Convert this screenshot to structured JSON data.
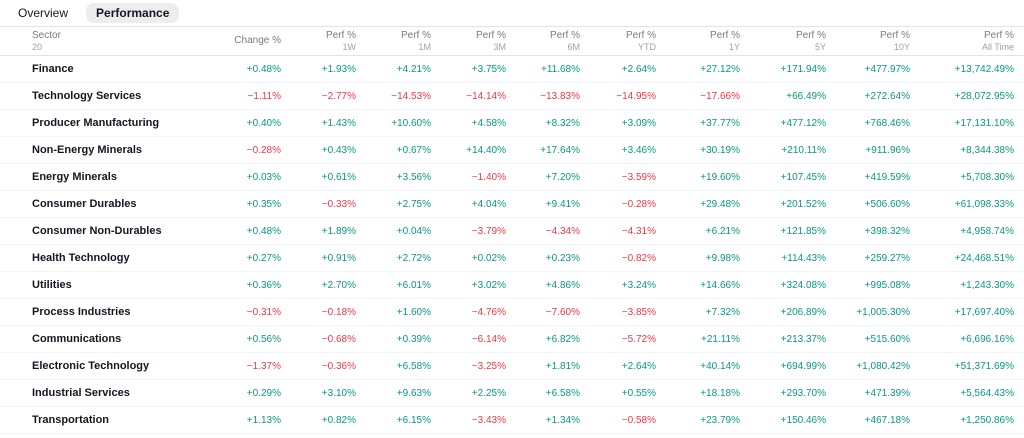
{
  "tabs": [
    {
      "label": "Overview",
      "active": false
    },
    {
      "label": "Performance",
      "active": true
    }
  ],
  "colors": {
    "positive": "#089981",
    "negative": "#f23645"
  },
  "table": {
    "sector_header": {
      "label": "Sector",
      "sub": "20"
    },
    "columns": [
      {
        "label": "Change %",
        "sub": ""
      },
      {
        "label": "Perf %",
        "sub": "1W"
      },
      {
        "label": "Perf %",
        "sub": "1M"
      },
      {
        "label": "Perf %",
        "sub": "3M"
      },
      {
        "label": "Perf %",
        "sub": "6M"
      },
      {
        "label": "Perf %",
        "sub": "YTD"
      },
      {
        "label": "Perf %",
        "sub": "1Y"
      },
      {
        "label": "Perf %",
        "sub": "5Y"
      },
      {
        "label": "Perf %",
        "sub": "10Y"
      },
      {
        "label": "Perf %",
        "sub": "All Time"
      }
    ],
    "rows": [
      {
        "sector": "Finance",
        "values": [
          "+0.48%",
          "+1.93%",
          "+4.21%",
          "+3.75%",
          "+11.68%",
          "+2.64%",
          "+27.12%",
          "+171.94%",
          "+477.97%",
          "+13,742.49%"
        ]
      },
      {
        "sector": "Technology Services",
        "values": [
          "−1.11%",
          "−2.77%",
          "−14.53%",
          "−14.14%",
          "−13.83%",
          "−14.95%",
          "−17.66%",
          "+66.49%",
          "+272.64%",
          "+28,072.95%"
        ]
      },
      {
        "sector": "Producer Manufacturing",
        "values": [
          "+0.40%",
          "+1.43%",
          "+10.60%",
          "+4.58%",
          "+8.32%",
          "+3.09%",
          "+37.77%",
          "+477.12%",
          "+768.46%",
          "+17,131.10%"
        ]
      },
      {
        "sector": "Non-Energy Minerals",
        "values": [
          "−0.28%",
          "+0.43%",
          "+0.67%",
          "+14.40%",
          "+17.64%",
          "+3.46%",
          "+30.19%",
          "+210.11%",
          "+911.96%",
          "+8,344.38%"
        ]
      },
      {
        "sector": "Energy Minerals",
        "values": [
          "+0.03%",
          "+0.61%",
          "+3.56%",
          "−1.40%",
          "+7.20%",
          "−3.59%",
          "+19.60%",
          "+107.45%",
          "+419.59%",
          "+5,708.30%"
        ]
      },
      {
        "sector": "Consumer Durables",
        "values": [
          "+0.35%",
          "−0.33%",
          "+2.75%",
          "+4.04%",
          "+9.41%",
          "−0.28%",
          "+29.48%",
          "+201.52%",
          "+506.60%",
          "+61,098.33%"
        ]
      },
      {
        "sector": "Consumer Non-Durables",
        "values": [
          "+0.48%",
          "+1.89%",
          "+0.04%",
          "−3.79%",
          "−4.34%",
          "−4.31%",
          "+6.21%",
          "+121.85%",
          "+398.32%",
          "+4,958.74%"
        ]
      },
      {
        "sector": "Health Technology",
        "values": [
          "+0.27%",
          "+0.91%",
          "+2.72%",
          "+0.02%",
          "+0.23%",
          "−0.82%",
          "+9.98%",
          "+114.43%",
          "+259.27%",
          "+24,468.51%"
        ]
      },
      {
        "sector": "Utilities",
        "values": [
          "+0.36%",
          "+2.70%",
          "+6.01%",
          "+3.02%",
          "+4.86%",
          "+3.24%",
          "+14.66%",
          "+324.08%",
          "+995.08%",
          "+1,243.30%"
        ]
      },
      {
        "sector": "Process Industries",
        "values": [
          "−0.31%",
          "−0.18%",
          "+1.60%",
          "−4.76%",
          "−7.60%",
          "−3.85%",
          "+7.32%",
          "+206.89%",
          "+1,005.30%",
          "+17,697.40%"
        ]
      },
      {
        "sector": "Communications",
        "values": [
          "+0.56%",
          "−0.68%",
          "+0.39%",
          "−6.14%",
          "+6.82%",
          "−5.72%",
          "+21.11%",
          "+213.37%",
          "+515.60%",
          "+6,696.16%"
        ]
      },
      {
        "sector": "Electronic Technology",
        "values": [
          "−1.37%",
          "−0.36%",
          "+6.58%",
          "−3.25%",
          "+1.81%",
          "+2.64%",
          "+40.14%",
          "+694.99%",
          "+1,080.42%",
          "+51,371.69%"
        ]
      },
      {
        "sector": "Industrial Services",
        "values": [
          "+0.29%",
          "+3.10%",
          "+9.63%",
          "+2.25%",
          "+6.58%",
          "+0.55%",
          "+18.18%",
          "+293.70%",
          "+471.39%",
          "+5,564.43%"
        ]
      },
      {
        "sector": "Transportation",
        "values": [
          "+1.13%",
          "+0.82%",
          "+6.15%",
          "−3.43%",
          "+1.34%",
          "−0.58%",
          "+23.79%",
          "+150.46%",
          "+467.18%",
          "+1,250.86%"
        ]
      }
    ]
  }
}
